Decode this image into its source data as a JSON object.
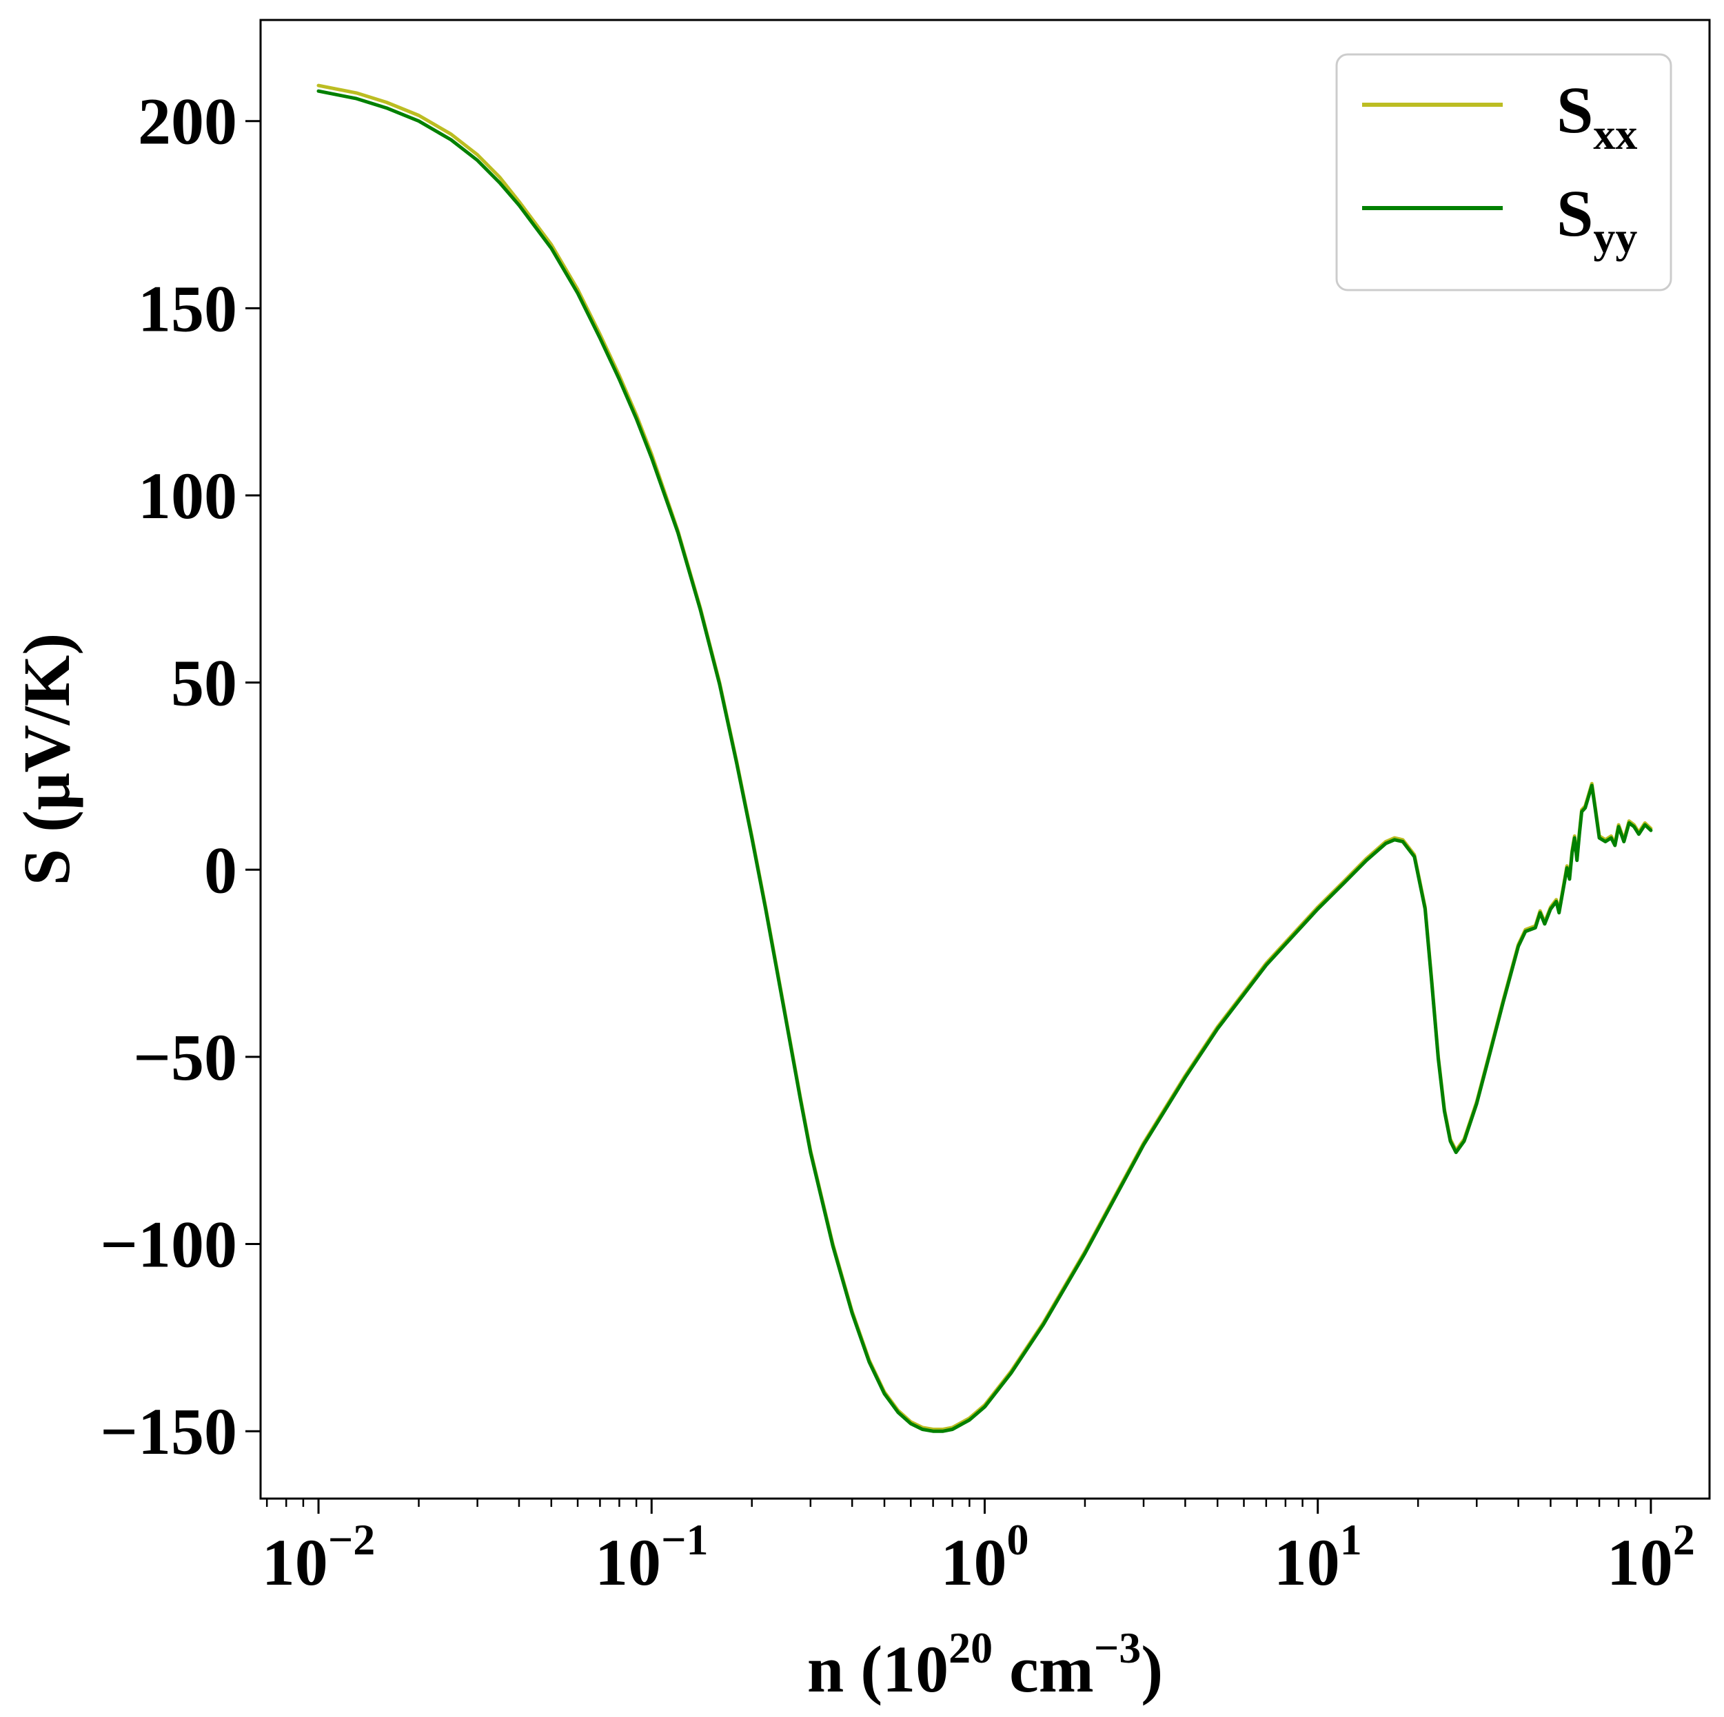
{
  "chart_data": {
    "type": "line",
    "title": "",
    "xlabel": {
      "base": "n (10",
      "sup1": "20",
      "middle": " cm",
      "sup2": "−3",
      "end": ")"
    },
    "ylabel": "S (μV/K)",
    "x_scale": "log",
    "xlim": [
      0.0067,
      150
    ],
    "ylim": [
      -168,
      227
    ],
    "x_ticks": [
      {
        "value": 0.01,
        "base": "10",
        "exp": "−2"
      },
      {
        "value": 0.1,
        "base": "10",
        "exp": "−1"
      },
      {
        "value": 1,
        "base": "10",
        "exp": "0"
      },
      {
        "value": 10,
        "base": "10",
        "exp": "1"
      },
      {
        "value": 100,
        "base": "10",
        "exp": "2"
      }
    ],
    "y_ticks": [
      {
        "value": 200,
        "label": "200"
      },
      {
        "value": 150,
        "label": "150"
      },
      {
        "value": 100,
        "label": "100"
      },
      {
        "value": 50,
        "label": "50"
      },
      {
        "value": 0,
        "label": "0"
      },
      {
        "value": -50,
        "label": "−50"
      },
      {
        "value": -100,
        "label": "−100"
      },
      {
        "value": -150,
        "label": "−150"
      }
    ],
    "grid": false,
    "legend_position": "top-right",
    "series": [
      {
        "name": "S_xx",
        "label_main": "S",
        "label_sub": "xx",
        "color": "#bcbd22",
        "points": [
          [
            0.01,
            209.5
          ],
          [
            0.013,
            207.5
          ],
          [
            0.016,
            205
          ],
          [
            0.02,
            201.5
          ],
          [
            0.025,
            196.5
          ],
          [
            0.03,
            191
          ],
          [
            0.035,
            185
          ],
          [
            0.04,
            178.5
          ],
          [
            0.05,
            167
          ],
          [
            0.06,
            155
          ],
          [
            0.07,
            143
          ],
          [
            0.08,
            132
          ],
          [
            0.09,
            121.5
          ],
          [
            0.1,
            111
          ],
          [
            0.12,
            90.5
          ],
          [
            0.14,
            70
          ],
          [
            0.16,
            50
          ],
          [
            0.18,
            29
          ],
          [
            0.2,
            9
          ],
          [
            0.22,
            -10
          ],
          [
            0.25,
            -37
          ],
          [
            0.28,
            -61
          ],
          [
            0.3,
            -75
          ],
          [
            0.35,
            -100
          ],
          [
            0.4,
            -118
          ],
          [
            0.45,
            -131
          ],
          [
            0.5,
            -139.5
          ],
          [
            0.55,
            -144.5
          ],
          [
            0.6,
            -147.5
          ],
          [
            0.65,
            -149
          ],
          [
            0.7,
            -149.5
          ],
          [
            0.75,
            -149.5
          ],
          [
            0.8,
            -149
          ],
          [
            0.9,
            -146.5
          ],
          [
            1,
            -143
          ],
          [
            1.2,
            -134
          ],
          [
            1.5,
            -121
          ],
          [
            2,
            -102
          ],
          [
            2.5,
            -86
          ],
          [
            3,
            -73
          ],
          [
            4,
            -55
          ],
          [
            5,
            -42
          ],
          [
            7,
            -25
          ],
          [
            10,
            -10
          ],
          [
            12,
            -3
          ],
          [
            14,
            3
          ],
          [
            16,
            7.5
          ],
          [
            17,
            8.5
          ],
          [
            18,
            8
          ],
          [
            19.5,
            4
          ],
          [
            21,
            -10
          ],
          [
            22,
            -30
          ],
          [
            23,
            -50
          ],
          [
            24,
            -64
          ],
          [
            25,
            -72
          ],
          [
            26,
            -75
          ],
          [
            27.5,
            -72
          ],
          [
            30,
            -62
          ],
          [
            33,
            -48
          ],
          [
            36,
            -35
          ],
          [
            40,
            -20
          ],
          [
            42,
            -16
          ],
          [
            45,
            -15
          ],
          [
            46.5,
            -11
          ],
          [
            48,
            -14
          ],
          [
            50,
            -10
          ],
          [
            52,
            -8
          ],
          [
            53,
            -11
          ],
          [
            55,
            -3
          ],
          [
            56,
            1
          ],
          [
            57,
            -2
          ],
          [
            58,
            5
          ],
          [
            59,
            9
          ],
          [
            60,
            3
          ],
          [
            61,
            10
          ],
          [
            62,
            16
          ],
          [
            63.5,
            17
          ],
          [
            65,
            20
          ],
          [
            66.5,
            23
          ],
          [
            68,
            17
          ],
          [
            70,
            9
          ],
          [
            73,
            8
          ],
          [
            76,
            9
          ],
          [
            78,
            7
          ],
          [
            80,
            12
          ],
          [
            83,
            8
          ],
          [
            86,
            13
          ],
          [
            89,
            12
          ],
          [
            92,
            10
          ],
          [
            96,
            12.5
          ],
          [
            100,
            11
          ]
        ]
      },
      {
        "name": "S_yy",
        "label_main": "S",
        "label_sub": "yy",
        "color": "#008000",
        "points": [
          [
            0.01,
            208
          ],
          [
            0.013,
            206
          ],
          [
            0.016,
            203.5
          ],
          [
            0.02,
            200
          ],
          [
            0.025,
            195
          ],
          [
            0.03,
            189.5
          ],
          [
            0.035,
            183.5
          ],
          [
            0.04,
            177.5
          ],
          [
            0.05,
            166
          ],
          [
            0.06,
            154
          ],
          [
            0.07,
            142
          ],
          [
            0.08,
            131
          ],
          [
            0.09,
            120.5
          ],
          [
            0.1,
            110
          ],
          [
            0.12,
            90
          ],
          [
            0.14,
            69.5
          ],
          [
            0.16,
            49.5
          ],
          [
            0.18,
            28.5
          ],
          [
            0.2,
            8.5
          ],
          [
            0.22,
            -10.5
          ],
          [
            0.25,
            -37.5
          ],
          [
            0.28,
            -61.5
          ],
          [
            0.3,
            -75.5
          ],
          [
            0.35,
            -100.5
          ],
          [
            0.4,
            -118.5
          ],
          [
            0.45,
            -131.5
          ],
          [
            0.5,
            -140
          ],
          [
            0.55,
            -145
          ],
          [
            0.6,
            -148
          ],
          [
            0.65,
            -149.5
          ],
          [
            0.7,
            -150
          ],
          [
            0.75,
            -150
          ],
          [
            0.8,
            -149.5
          ],
          [
            0.9,
            -147
          ],
          [
            1,
            -143.5
          ],
          [
            1.2,
            -134.5
          ],
          [
            1.5,
            -121.5
          ],
          [
            2,
            -102.5
          ],
          [
            2.5,
            -86.5
          ],
          [
            3,
            -73.5
          ],
          [
            4,
            -55.5
          ],
          [
            5,
            -42.5
          ],
          [
            7,
            -25.5
          ],
          [
            10,
            -10.5
          ],
          [
            12,
            -3.5
          ],
          [
            14,
            2.5
          ],
          [
            16,
            7
          ],
          [
            17,
            8
          ],
          [
            18,
            7.5
          ],
          [
            19.5,
            3.5
          ],
          [
            21,
            -10.5
          ],
          [
            22,
            -30.5
          ],
          [
            23,
            -50.5
          ],
          [
            24,
            -64.5
          ],
          [
            25,
            -72.5
          ],
          [
            26,
            -75.5
          ],
          [
            27.5,
            -72.5
          ],
          [
            30,
            -62.5
          ],
          [
            33,
            -48.5
          ],
          [
            36,
            -35.5
          ],
          [
            40,
            -20.5
          ],
          [
            42,
            -16.5
          ],
          [
            45,
            -15.5
          ],
          [
            46.5,
            -11.5
          ],
          [
            48,
            -14.5
          ],
          [
            50,
            -10.5
          ],
          [
            52,
            -8.5
          ],
          [
            53,
            -11.5
          ],
          [
            55,
            -3.5
          ],
          [
            56,
            0.5
          ],
          [
            57,
            -2.5
          ],
          [
            58,
            4.5
          ],
          [
            59,
            8.5
          ],
          [
            60,
            2.5
          ],
          [
            61,
            9.5
          ],
          [
            62,
            15.5
          ],
          [
            63.5,
            16.5
          ],
          [
            65,
            19.5
          ],
          [
            66.5,
            22.5
          ],
          [
            68,
            16.5
          ],
          [
            70,
            8.5
          ],
          [
            73,
            7.5
          ],
          [
            76,
            8.5
          ],
          [
            78,
            6.5
          ],
          [
            80,
            11.5
          ],
          [
            83,
            7.5
          ],
          [
            86,
            12.5
          ],
          [
            89,
            11.5
          ],
          [
            92,
            9.5
          ],
          [
            96,
            12
          ],
          [
            100,
            10.5
          ]
        ]
      }
    ]
  }
}
